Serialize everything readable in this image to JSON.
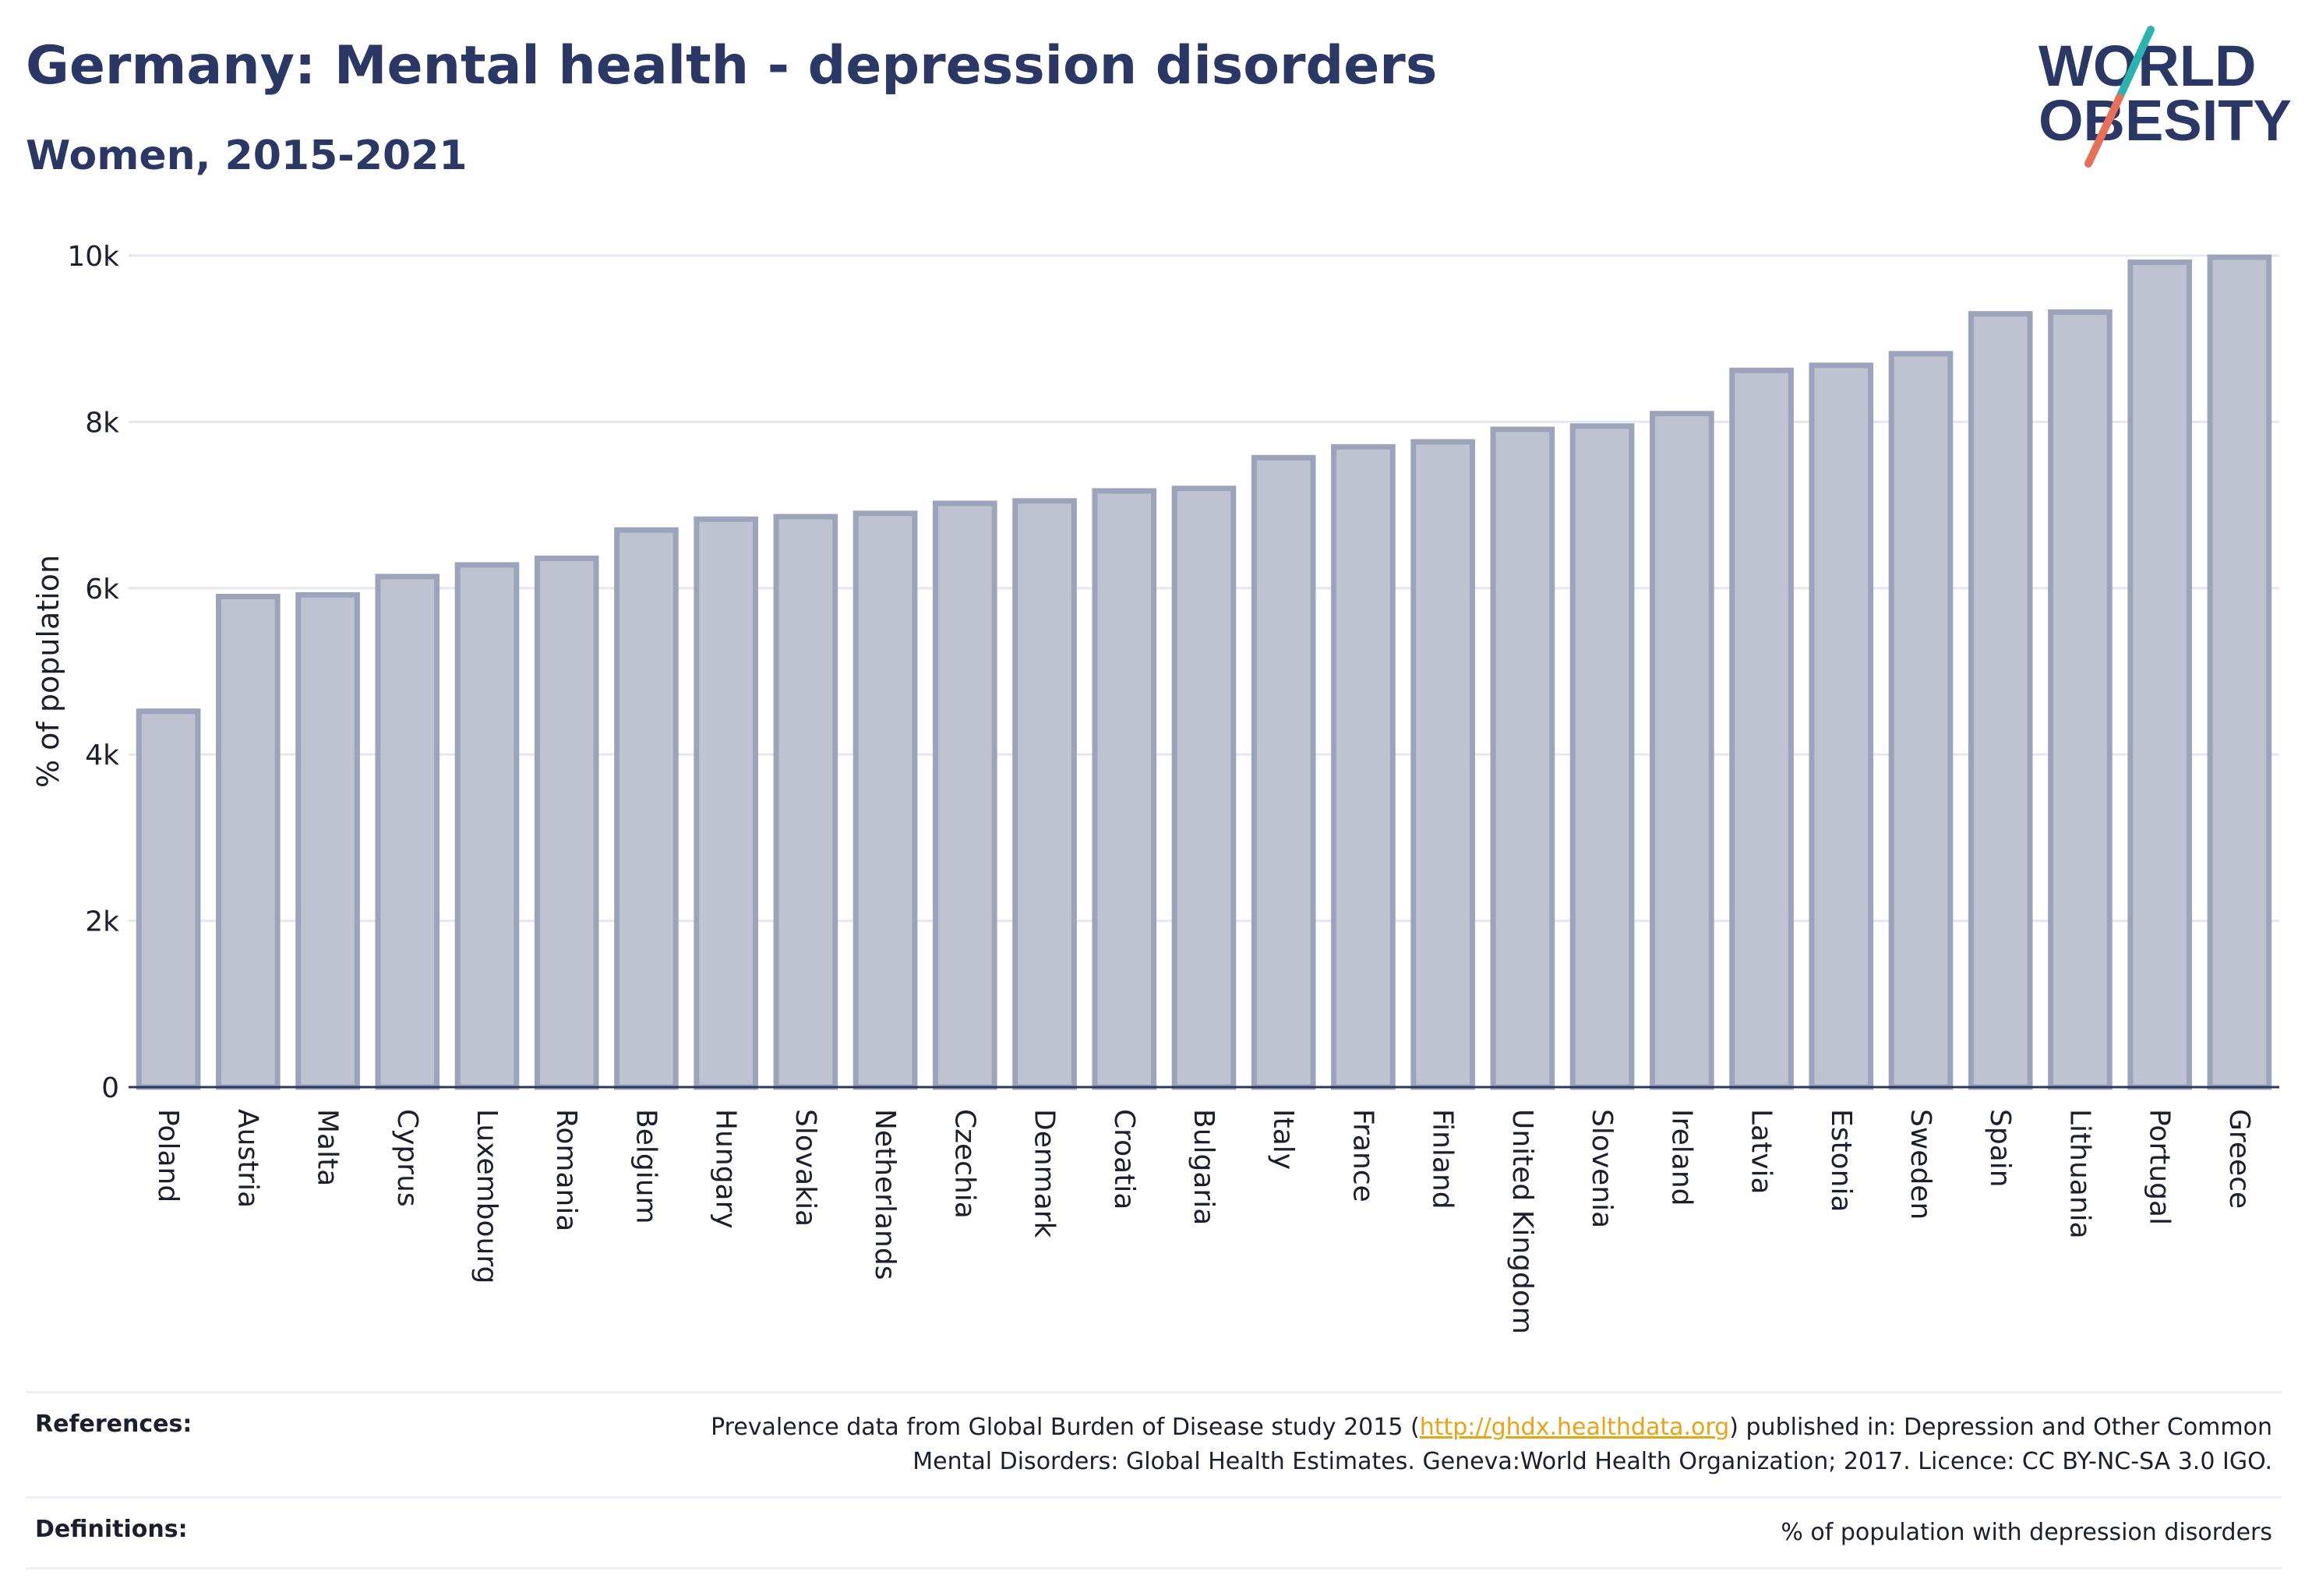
{
  "header": {
    "title": "Germany: Mental health - depression disorders",
    "subtitle": "Women, 2015-2021",
    "logo_line1": "WORLD",
    "logo_line2": "OBESITY"
  },
  "colors": {
    "bar_fill": "#bfc3d1",
    "bar_stroke": "#9da3bb",
    "title": "#2b3765",
    "grid": "#e6e8ef",
    "link": "#e8a317",
    "logo_teal": "#2ab3b1",
    "logo_coral": "#e8705a"
  },
  "chart_data": {
    "type": "bar",
    "title": "Germany: Mental health - depression disorders",
    "subtitle": "Women, 2015-2021",
    "xlabel": "",
    "ylabel": "% of population",
    "ylim": [
      0,
      10000
    ],
    "yticks": [
      0,
      2000,
      4000,
      6000,
      8000,
      10000
    ],
    "ytick_labels": [
      "0",
      "2k",
      "4k",
      "6k",
      "8k",
      "10k"
    ],
    "grid": true,
    "categories": [
      "Poland",
      "Austria",
      "Malta",
      "Cyprus",
      "Luxembourg",
      "Romania",
      "Belgium",
      "Hungary",
      "Slovakia",
      "Netherlands",
      "Czechia",
      "Denmark",
      "Croatia",
      "Bulgaria",
      "Italy",
      "France",
      "Finland",
      "United Kingdom",
      "Slovenia",
      "Ireland",
      "Latvia",
      "Estonia",
      "Sweden",
      "Spain",
      "Lithuania",
      "Portugal",
      "Greece"
    ],
    "values": [
      4520,
      5900,
      5920,
      6140,
      6280,
      6360,
      6700,
      6830,
      6860,
      6900,
      7020,
      7050,
      7170,
      7200,
      7570,
      7700,
      7760,
      7910,
      7950,
      8100,
      8620,
      8680,
      8820,
      9300,
      9320,
      9920,
      9980
    ]
  },
  "references": {
    "label": "References:",
    "text_before": "Prevalence data from Global Burden of Disease study 2015 (",
    "link": "http://ghdx.healthdata.org",
    "text_after": ") published in: Depression and Other Common",
    "text_line2": "Mental Disorders: Global Health Estimates. Geneva:World Health Organization; 2017. Licence: CC BY-NC-SA 3.0 IGO."
  },
  "definitions": {
    "label": "Definitions:",
    "text": "% of population with depression disorders"
  }
}
